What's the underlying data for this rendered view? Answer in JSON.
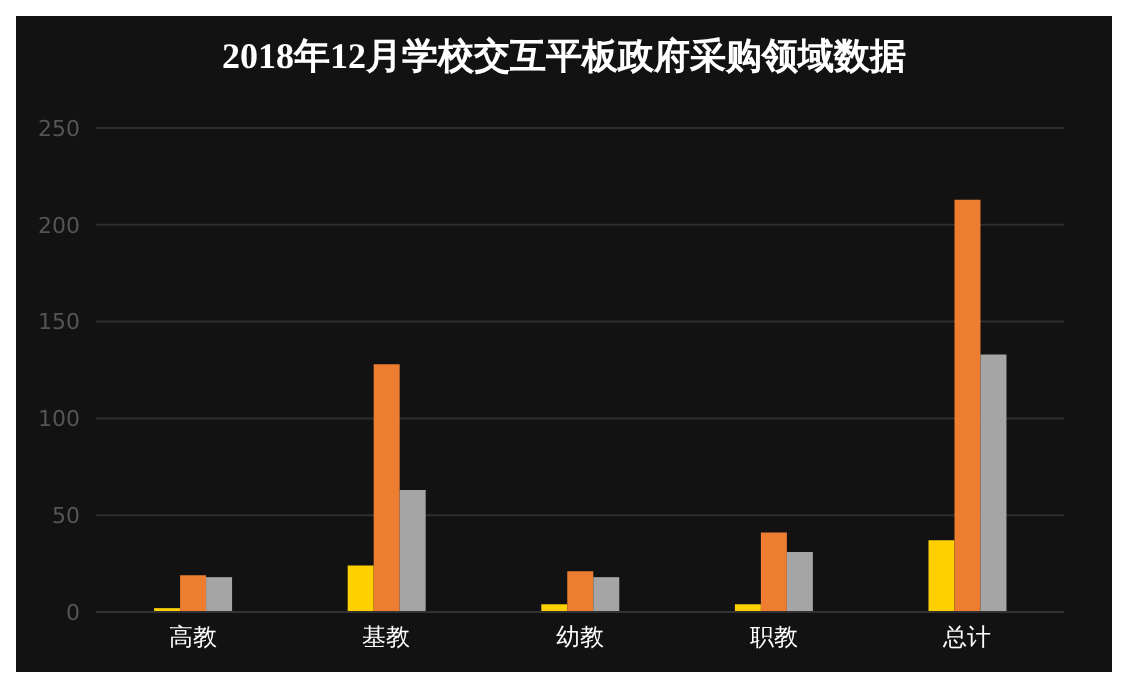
{
  "chart_data": {
    "type": "bar",
    "title": "2018年12月学校交互平板政府采购领域数据",
    "categories": [
      "高教",
      "基教",
      "幼教",
      "职教",
      "总计"
    ],
    "series": [
      {
        "color": "#ffd000",
        "values": [
          2,
          24,
          4,
          4,
          37
        ]
      },
      {
        "color": "#ed7d31",
        "values": [
          19,
          128,
          21,
          41,
          213
        ]
      },
      {
        "color": "#a5a5a5",
        "values": [
          18,
          63,
          18,
          31,
          133
        ]
      }
    ],
    "ylim": [
      0,
      250
    ],
    "yticks": [
      0,
      50,
      100,
      150,
      200,
      250
    ],
    "grid": "y",
    "legend": false
  }
}
